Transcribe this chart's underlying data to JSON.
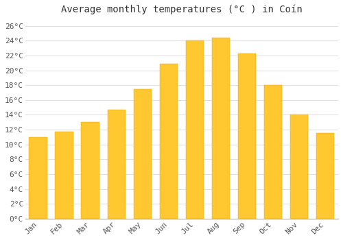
{
  "title": "Average monthly temperatures (°C ) in Coín",
  "months": [
    "Jan",
    "Feb",
    "Mar",
    "Apr",
    "May",
    "Jun",
    "Jul",
    "Aug",
    "Sep",
    "Oct",
    "Nov",
    "Dec"
  ],
  "values": [
    11.0,
    11.7,
    13.0,
    14.7,
    17.5,
    20.9,
    24.0,
    24.4,
    22.3,
    18.0,
    14.0,
    11.5
  ],
  "bar_color_top": "#FFC830",
  "bar_color_bottom": "#F5A800",
  "bar_edge_color": "#E8A000",
  "background_color": "#FFFFFF",
  "grid_color": "#E0E0E0",
  "ylim": [
    0,
    27
  ],
  "yticks": [
    0,
    2,
    4,
    6,
    8,
    10,
    12,
    14,
    16,
    18,
    20,
    22,
    24,
    26
  ],
  "title_fontsize": 10,
  "tick_fontsize": 8,
  "font_family": "monospace"
}
